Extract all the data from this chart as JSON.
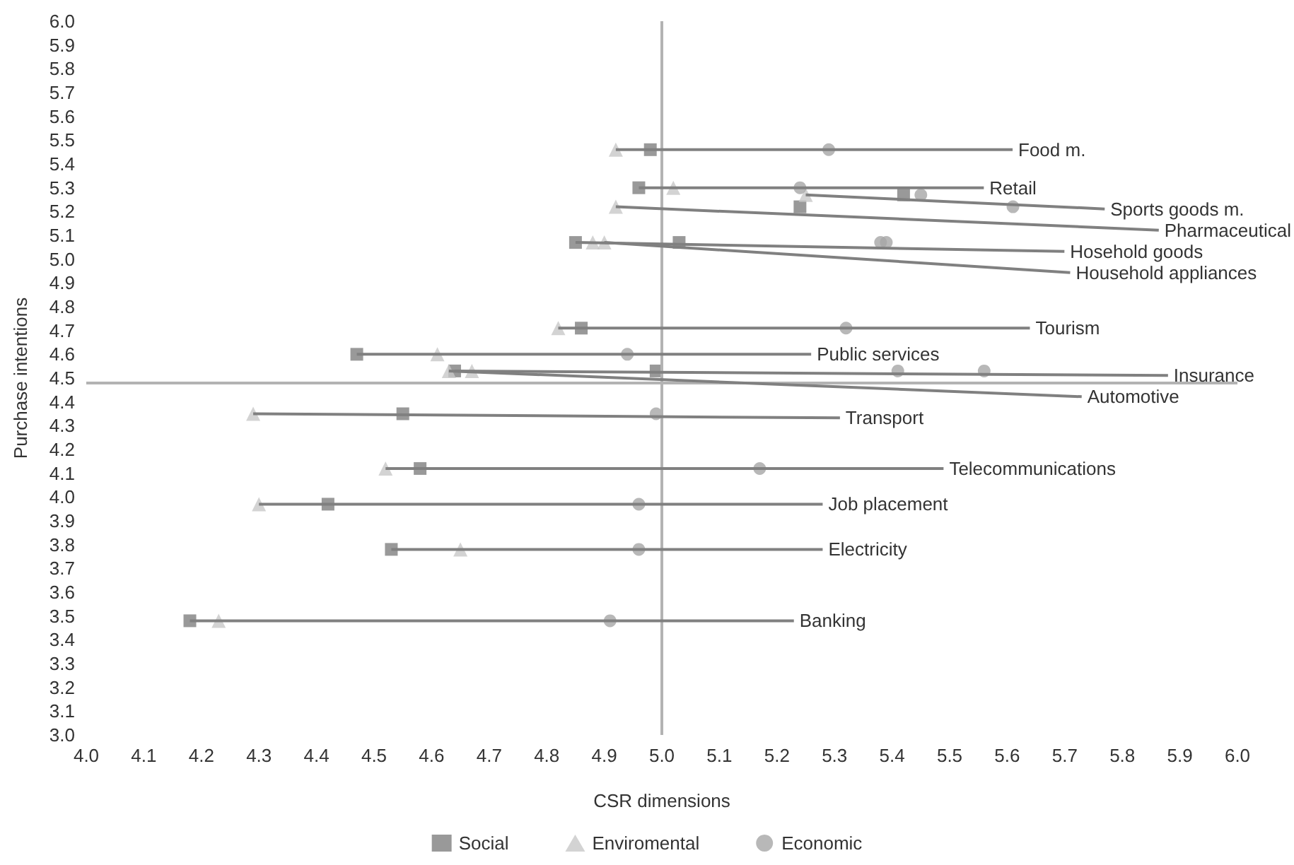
{
  "chart_data": {
    "type": "scatter",
    "xlabel": "CSR dimensions",
    "ylabel": "Purchase intentions",
    "xlim": [
      4,
      6
    ],
    "xticks": [
      {
        "value": 4,
        "label": "4.0"
      },
      4.1,
      4.2,
      4.3,
      4.4,
      4.5,
      4.6,
      4.7,
      4.8,
      4.9,
      {
        "value": 5,
        "label": "5.0"
      },
      5.1,
      5.2,
      5.3,
      5.4,
      5.5,
      5.6,
      5.7,
      5.8,
      5.9,
      {
        "value": 6,
        "label": "6.0"
      }
    ],
    "ylim": [
      3,
      6
    ],
    "yticks": [
      {
        "value": 3,
        "label": "3.0"
      },
      3.1,
      3.2,
      3.3,
      3.4,
      3.5,
      3.6,
      3.7,
      3.8,
      3.9,
      {
        "value": 4,
        "label": "4.0"
      },
      4.1,
      4.2,
      4.3,
      4.4,
      4.5,
      4.6,
      4.7,
      4.8,
      4.9,
      {
        "value": 5,
        "label": "5.0"
      },
      5.1,
      5.2,
      5.3,
      5.4,
      5.5,
      5.6,
      5.7,
      5.8,
      5.9,
      {
        "value": 6,
        "label": "6.0"
      }
    ],
    "grid": false,
    "legend": "bottom",
    "series": [
      {
        "name": "Social",
        "color": "#808080",
        "marker": "square",
        "x": [
          4.98,
          4.96,
          5.42,
          5.24,
          4.85,
          5.03,
          4.86,
          4.47,
          4.64,
          4.99,
          4.55,
          4.58,
          4.42,
          4.53,
          4.18
        ],
        "values": [
          5.46,
          5.3,
          5.27,
          5.22,
          5.07,
          5.07,
          4.71,
          4.6,
          4.53,
          4.53,
          4.35,
          4.12,
          3.97,
          3.78,
          3.48
        ]
      },
      {
        "name": "Enviromental",
        "color": "#c8c8c8",
        "marker": "triangle",
        "x": [
          4.92,
          5.02,
          5.25,
          4.92,
          4.88,
          4.9,
          4.82,
          4.61,
          4.67,
          4.63,
          4.29,
          4.52,
          4.3,
          4.65,
          4.23
        ],
        "values": [
          5.46,
          5.3,
          5.27,
          5.22,
          5.07,
          5.07,
          4.71,
          4.6,
          4.53,
          4.53,
          4.35,
          4.12,
          3.97,
          3.78,
          3.48
        ]
      },
      {
        "name": "Economic",
        "color": "#a6a6a6",
        "marker": "circle",
        "x": [
          5.29,
          5.24,
          5.45,
          5.61,
          5.38,
          5.39,
          5.32,
          4.94,
          5.56,
          5.41,
          4.99,
          5.17,
          4.96,
          4.96,
          4.91
        ],
        "values": [
          5.46,
          5.3,
          5.27,
          5.22,
          5.07,
          5.07,
          4.71,
          4.6,
          4.53,
          4.53,
          4.35,
          4.12,
          3.97,
          3.78,
          3.48
        ]
      }
    ],
    "ref_lines": [
      {
        "axis": "x",
        "value": 5,
        "color": "#b3b3b3"
      },
      {
        "axis": "y",
        "value": 4.48,
        "color": "#b3b3b3"
      }
    ],
    "annotations": [
      {
        "text": "Food m.",
        "x": 4.92,
        "y": 5.46
      },
      {
        "text": "Retail",
        "x": 4.96,
        "y": 5.3
      },
      {
        "text": "Sports goods m.",
        "x": 5.25,
        "y": 5.27
      },
      {
        "text": "Pharmaceutical",
        "x": 4.92,
        "y": 5.22
      },
      {
        "text": "Hosehold goods",
        "x": 4.85,
        "y": 5.07
      },
      {
        "text": "Household appliances",
        "x": 4.9,
        "y": 5.07
      },
      {
        "text": "Tourism",
        "x": 4.82,
        "y": 4.71
      },
      {
        "text": "Public services",
        "x": 4.47,
        "y": 4.6
      },
      {
        "text": "Insurance",
        "x": 4.64,
        "y": 4.53
      },
      {
        "text": "Automotive",
        "x": 4.63,
        "y": 4.53
      },
      {
        "text": "Transport",
        "x": 4.29,
        "y": 4.35
      },
      {
        "text": "Telecommunications",
        "x": 4.52,
        "y": 4.12
      },
      {
        "text": "Job placement",
        "x": 4.3,
        "y": 3.97
      },
      {
        "text": "Electricity",
        "x": 4.53,
        "y": 3.78
      },
      {
        "text": "Banking",
        "x": 4.18,
        "y": 3.48
      }
    ]
  }
}
